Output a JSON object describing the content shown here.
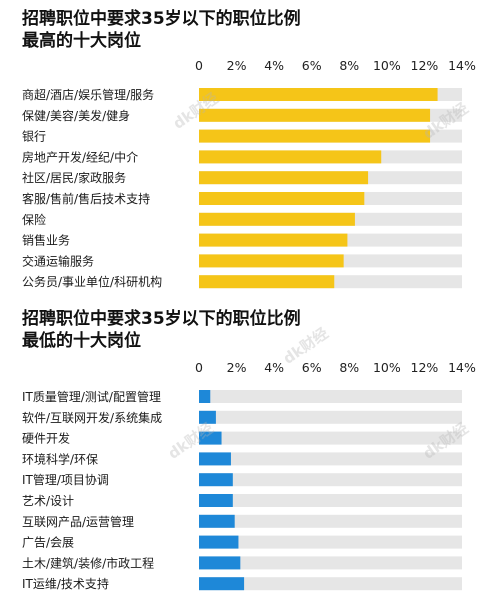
{
  "watermark": "dk财经",
  "chart_data": [
    {
      "type": "bar",
      "orientation": "horizontal",
      "title": [
        "招聘职位中要求35岁以下的职位比例",
        "最高的十大岗位"
      ],
      "categories": [
        "商超/酒店/娱乐管理/服务",
        "保健/美容/美发/健身",
        "银行",
        "房地产开发/经纪/中介",
        "社区/居民/家政服务",
        "客服/售前/售后技术支持",
        "保险",
        "销售业务",
        "交通运输服务",
        "公务员/事业单位/科研机构"
      ],
      "values": [
        12.7,
        12.3,
        12.3,
        9.7,
        9.0,
        8.8,
        8.3,
        7.9,
        7.7,
        7.2
      ],
      "xlim": [
        0,
        14
      ],
      "ticks": [
        "0",
        "2%",
        "4%",
        "6%",
        "8%",
        "10%",
        "12%",
        "14%"
      ],
      "colors": {
        "bar": "#f5c518",
        "track": "#e6e6e6"
      }
    },
    {
      "type": "bar",
      "orientation": "horizontal",
      "title": [
        "招聘职位中要求35岁以下的职位比例",
        "最低的十大岗位"
      ],
      "categories": [
        "IT质量管理/测试/配置管理",
        "软件/互联网开发/系统集成",
        "硬件开发",
        "环境科学/环保",
        "IT管理/项目协调",
        "艺术/设计",
        "互联网产品/运营管理",
        "广告/会展",
        "土木/建筑/装修/市政工程",
        "IT运维/技术支持"
      ],
      "values": [
        0.6,
        0.9,
        1.2,
        1.7,
        1.8,
        1.8,
        1.9,
        2.1,
        2.2,
        2.4
      ],
      "xlim": [
        0,
        14
      ],
      "ticks": [
        "0",
        "2%",
        "4%",
        "6%",
        "8%",
        "10%",
        "12%",
        "14%"
      ],
      "colors": {
        "bar": "#1e88d8",
        "track": "#e6e6e6"
      }
    }
  ]
}
